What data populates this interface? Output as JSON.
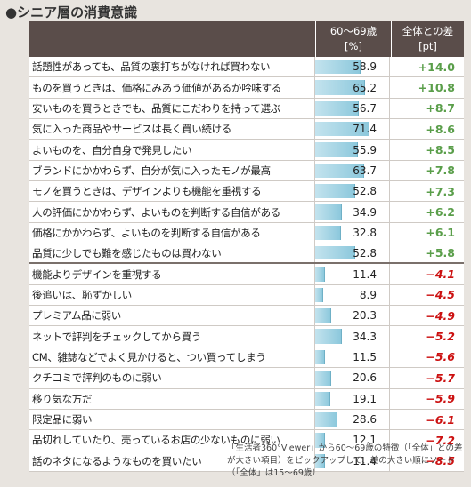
{
  "title": "●シニア層の消費意識",
  "header": {
    "value_line1": "60～69歳",
    "value_line2": "[%]",
    "diff_line1": "全体との差",
    "diff_line2": "[pt]"
  },
  "colors": {
    "header_bg": "#5a4d4a",
    "bar": "#8cc8dc",
    "positive": "#5a9e4a",
    "negative": "#cc1111"
  },
  "chart_data": {
    "type": "table",
    "title": "●シニア層の消費意識",
    "columns": [
      "60～69歳 [%]",
      "全体との差 [pt]"
    ],
    "value_range": [
      0,
      100
    ],
    "rows": [
      {
        "label": "話題性があっても、品質の裏打ちがなければ買わない",
        "value": 58.9,
        "diff": "+14.0"
      },
      {
        "label": "ものを買うときは、価格にみあう価値があるか吟味する",
        "value": 65.2,
        "diff": "+10.8"
      },
      {
        "label": "安いものを買うときでも、品質にこだわりを持って選ぶ",
        "value": 56.7,
        "diff": "+8.7"
      },
      {
        "label": "気に入った商品やサービスは長く買い続ける",
        "value": 71.4,
        "diff": "+8.6"
      },
      {
        "label": "よいものを、自分自身で発見したい",
        "value": 55.9,
        "diff": "+8.5"
      },
      {
        "label": "ブランドにかかわらず、自分が気に入ったモノが最高",
        "value": 63.7,
        "diff": "+7.8"
      },
      {
        "label": "モノを買うときは、デザインよりも機能を重視する",
        "value": 52.8,
        "diff": "+7.3"
      },
      {
        "label": "人の評価にかかわらず、よいものを判断する自信がある",
        "value": 34.9,
        "diff": "+6.2"
      },
      {
        "label": "価格にかかわらず、よいものを判断する自信がある",
        "value": 32.8,
        "diff": "+6.1"
      },
      {
        "label": "品質に少しでも難を感じたものは買わない",
        "value": 52.8,
        "diff": "+5.8"
      },
      {
        "label": "機能よりデザインを重視する",
        "value": 11.4,
        "diff": "−4.1"
      },
      {
        "label": "後追いは、恥ずかしい",
        "value": 8.9,
        "diff": "−4.5"
      },
      {
        "label": "プレミアム品に弱い",
        "value": 20.3,
        "diff": "−4.9"
      },
      {
        "label": "ネットで評判をチェックしてから買う",
        "value": 34.3,
        "diff": "−5.2"
      },
      {
        "label": "CM、雑誌などでよく見かけると、つい買ってしまう",
        "value": 11.5,
        "diff": "−5.6"
      },
      {
        "label": "クチコミで評判のものに弱い",
        "value": 20.6,
        "diff": "−5.7"
      },
      {
        "label": "移り気な方だ",
        "value": 19.1,
        "diff": "−5.9"
      },
      {
        "label": "限定品に弱い",
        "value": 28.6,
        "diff": "−6.1"
      },
      {
        "label": "品切れしていたり、売っているお店の少ないものに弱い",
        "value": 12.1,
        "diff": "−7.2"
      },
      {
        "label": "話のネタになるようなものを買いたい",
        "value": 11.4,
        "diff": "−8.5"
      }
    ]
  },
  "note": "「生活者360°Viewer」から60～69歳の特徴（「全体」との差が大きい項目）をピックアップして、差の大きい順にソート（「全体」は15～69歳）"
}
